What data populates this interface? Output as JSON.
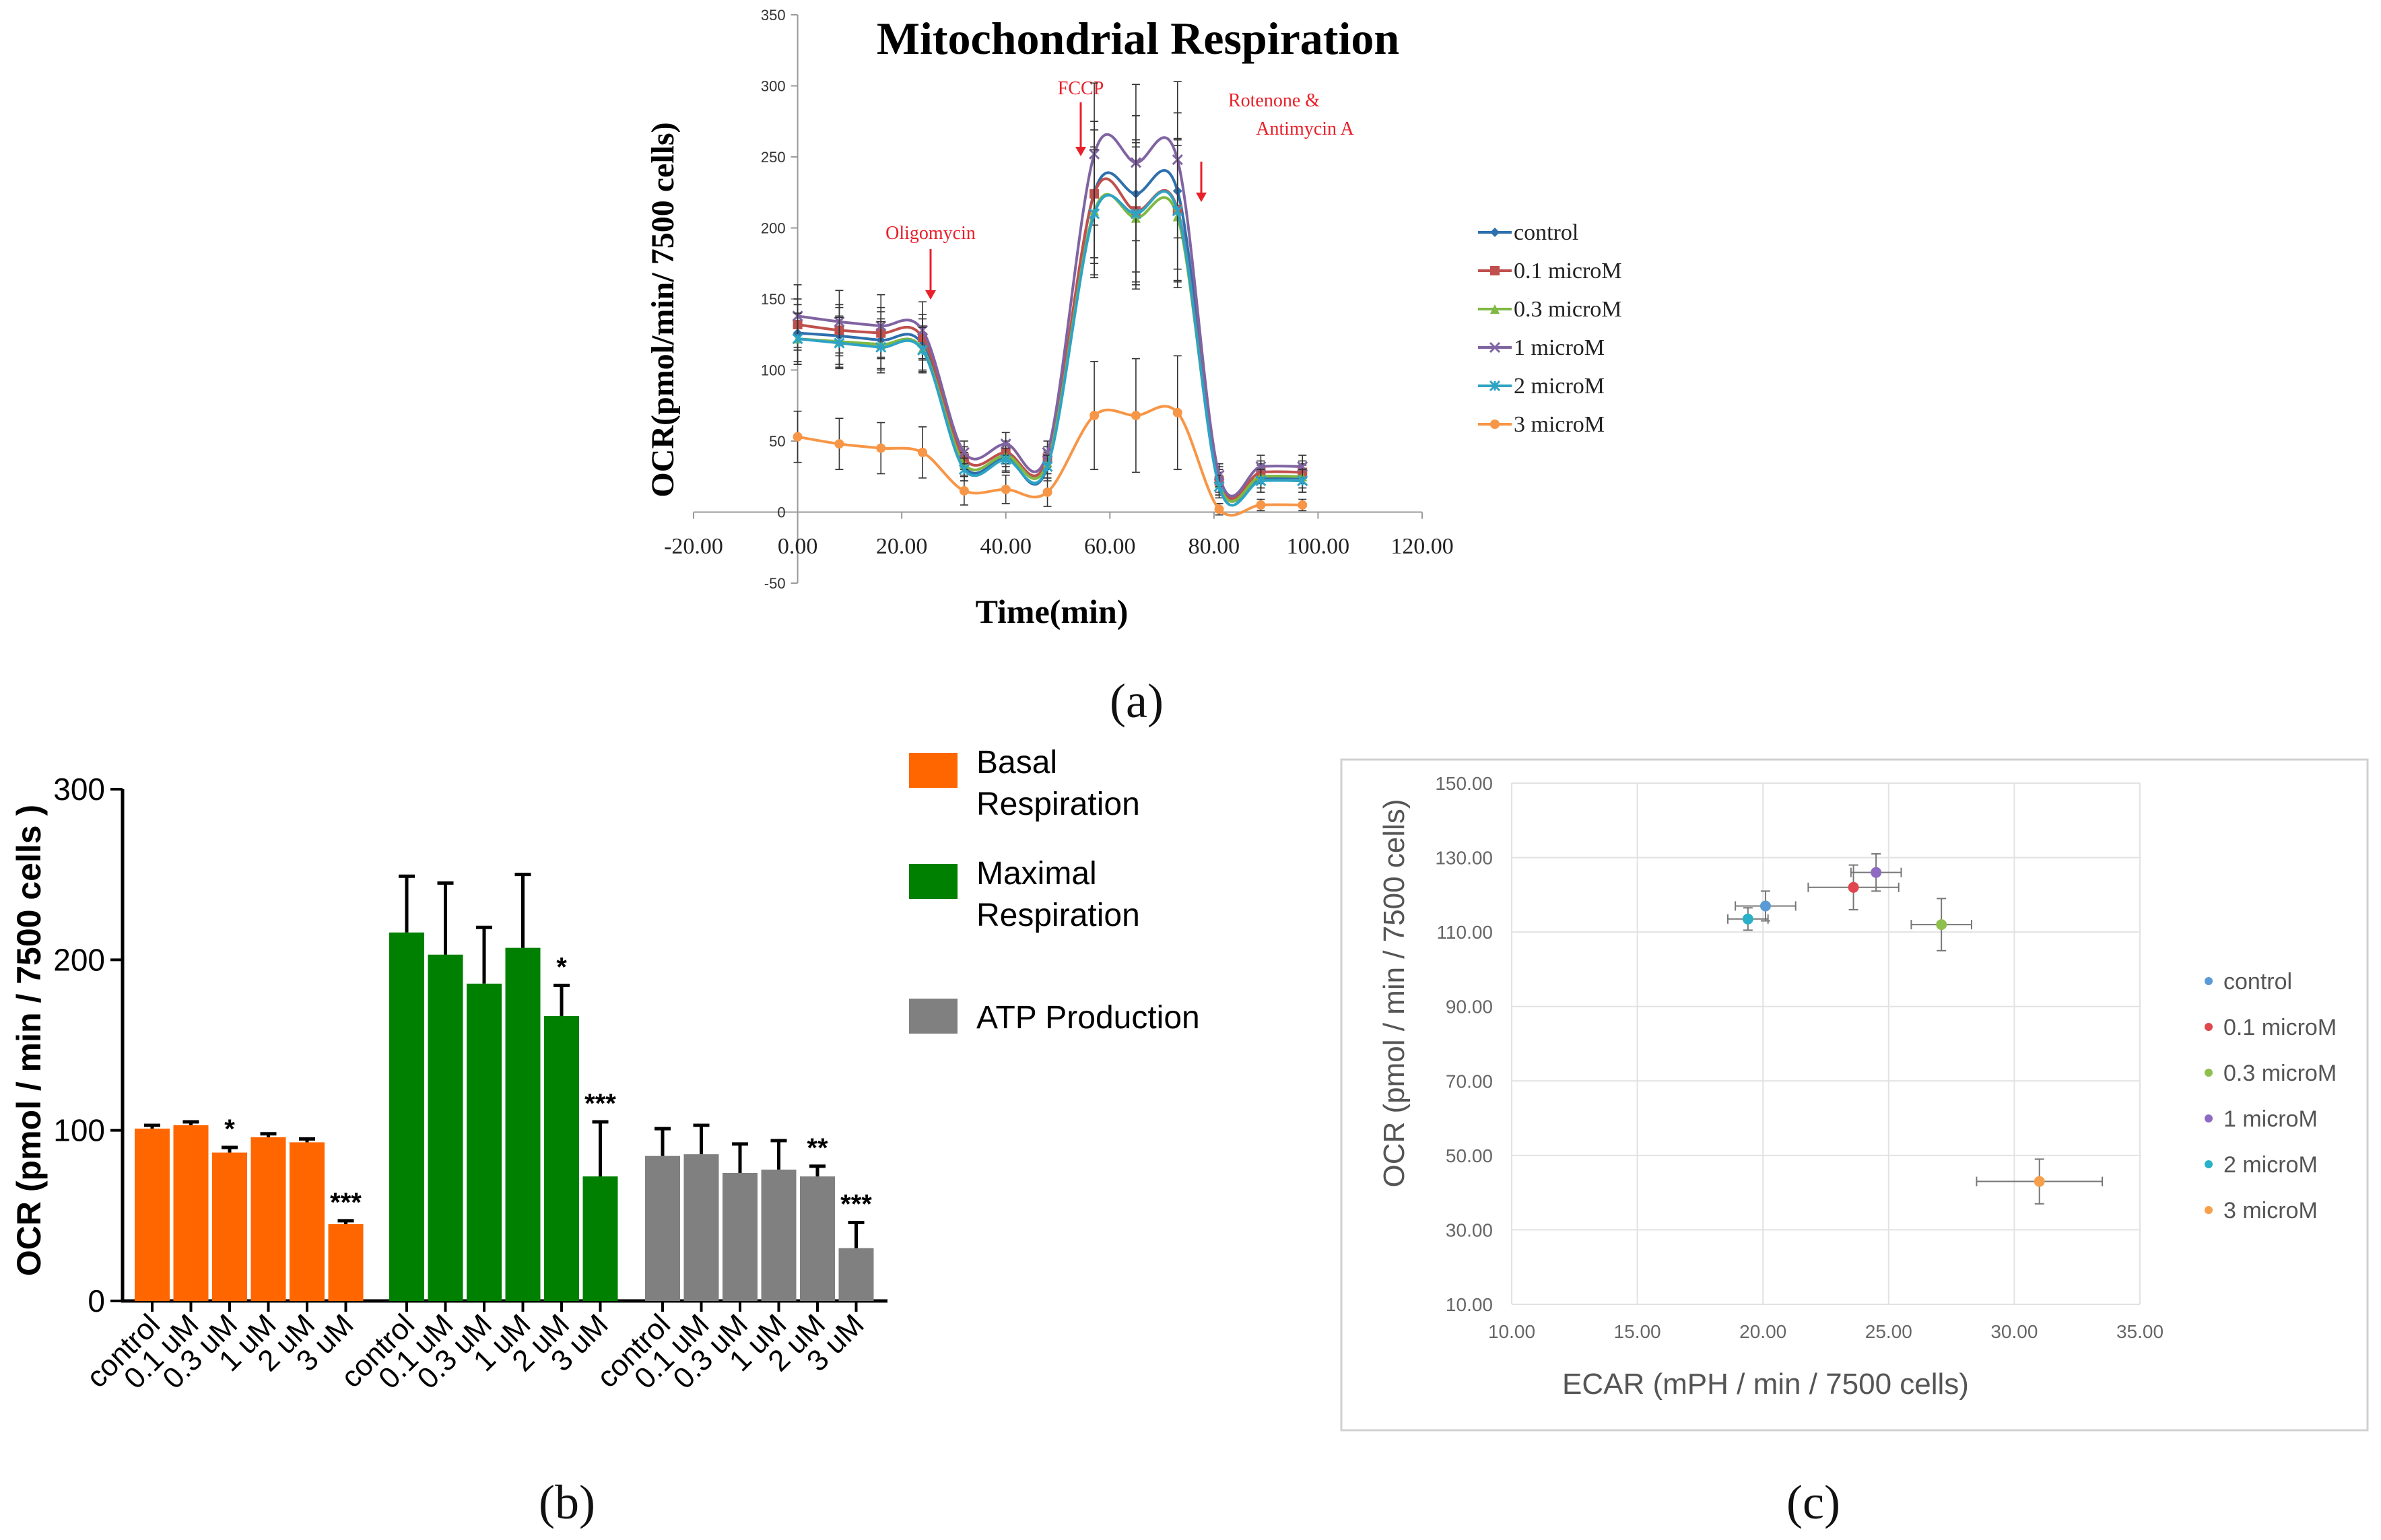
{
  "figure_labels": {
    "a": "(a)",
    "b": "(b)",
    "c": "(c)"
  },
  "chart_data": [
    {
      "id": "a",
      "type": "line",
      "title": "Mitochondrial Respiration",
      "xlabel": "Time(min)",
      "ylabel": "OCR(pmol/min/ 7500 cells)",
      "xlim": [
        -20,
        120
      ],
      "ylim": [
        -50,
        350
      ],
      "xticks": [
        "-20.00",
        "0.00",
        "20.00",
        "40.00",
        "60.00",
        "80.00",
        "100.00",
        "120.00"
      ],
      "yticks": [
        "-50",
        "0",
        "50",
        "100",
        "150",
        "200",
        "250",
        "300",
        "350"
      ],
      "x": [
        0,
        8,
        16,
        24,
        32,
        40,
        48,
        57,
        65,
        73,
        81,
        89,
        97
      ],
      "legend_position": "right",
      "annotations": [
        {
          "text": "Oligomycin",
          "x": 26,
          "arrow_y": 150
        },
        {
          "text": "FCCP",
          "x": 55,
          "arrow_y": 250
        },
        {
          "text": "Rotenone &",
          "x": 78,
          "arrow_y": 220
        },
        {
          "text": "Antimycin  A",
          "x": 78,
          "arrow_y": 220
        }
      ],
      "series": [
        {
          "name": "control",
          "color": "#2e6fad",
          "marker": "diamond",
          "values": [
            126,
            124,
            121,
            118,
            32,
            38,
            32,
            225,
            224,
            226,
            22,
            24,
            24
          ],
          "error": [
            20,
            20,
            20,
            18,
            10,
            10,
            10,
            50,
            55,
            55,
            10,
            10,
            10
          ]
        },
        {
          "name": "0.1 microM",
          "color": "#c0504d",
          "marker": "square",
          "values": [
            132,
            128,
            126,
            123,
            38,
            42,
            38,
            224,
            212,
            213,
            22,
            28,
            28
          ],
          "error": [
            18,
            18,
            18,
            16,
            8,
            8,
            8,
            45,
            50,
            50,
            8,
            8,
            8
          ]
        },
        {
          "name": "0.3 microM",
          "color": "#7fb842",
          "marker": "triangle",
          "values": [
            122,
            120,
            118,
            115,
            34,
            40,
            35,
            212,
            207,
            208,
            20,
            25,
            25
          ],
          "error": [
            18,
            18,
            18,
            16,
            8,
            8,
            8,
            45,
            50,
            50,
            8,
            8,
            8
          ]
        },
        {
          "name": "1 microM",
          "color": "#8064a2",
          "marker": "x",
          "values": [
            138,
            134,
            131,
            128,
            42,
            48,
            42,
            252,
            246,
            248,
            26,
            32,
            32
          ],
          "error": [
            22,
            22,
            22,
            20,
            8,
            8,
            8,
            50,
            55,
            55,
            8,
            8,
            8
          ]
        },
        {
          "name": "2 microM",
          "color": "#2ea3c4",
          "marker": "star",
          "values": [
            122,
            119,
            116,
            114,
            30,
            37,
            32,
            210,
            210,
            212,
            18,
            22,
            22
          ],
          "error": [
            18,
            18,
            18,
            16,
            8,
            8,
            8,
            45,
            50,
            50,
            8,
            8,
            8
          ]
        },
        {
          "name": "3 microM",
          "color": "#f79646",
          "marker": "circle",
          "values": [
            53,
            48,
            45,
            42,
            15,
            16,
            14,
            68,
            68,
            70,
            2,
            5,
            5
          ],
          "error": [
            18,
            18,
            18,
            18,
            10,
            10,
            10,
            38,
            40,
            40,
            4,
            4,
            4
          ]
        }
      ]
    },
    {
      "id": "b",
      "type": "bar",
      "ylabel": "OCR (pmol / min / 7500 cells )",
      "ylim": [
        0,
        300
      ],
      "yticks": [
        "0",
        "100",
        "200",
        "300"
      ],
      "categories": [
        "control",
        "0.1 uM",
        "0.3 uM",
        "1 uM",
        "2 uM",
        "3 uM"
      ],
      "legend_position": "right",
      "series": [
        {
          "name": "Basal Respiration",
          "legend_lines": [
            "Basal",
            "Respiration"
          ],
          "color": "#ff6600",
          "values": [
            101,
            103,
            87,
            96,
            93,
            45
          ],
          "error": [
            2,
            2,
            3,
            2,
            2,
            2
          ],
          "significance": [
            "",
            "",
            "*",
            "",
            "",
            "***"
          ]
        },
        {
          "name": "Maximal Respiration",
          "legend_lines": [
            "Maximal",
            "Respiration"
          ],
          "color": "#008000",
          "values": [
            216,
            203,
            186,
            207,
            167,
            73
          ],
          "error": [
            33,
            42,
            33,
            43,
            18,
            32
          ],
          "significance": [
            "",
            "",
            "",
            "",
            "*",
            "***"
          ]
        },
        {
          "name": "ATP Production",
          "legend_lines": [
            "ATP Production"
          ],
          "color": "#808080",
          "values": [
            85,
            86,
            75,
            77,
            73,
            31
          ],
          "error": [
            16,
            17,
            17,
            17,
            6,
            15
          ],
          "significance": [
            "",
            "",
            "",
            "",
            "**",
            "***"
          ]
        }
      ]
    },
    {
      "id": "c",
      "type": "scatter",
      "xlabel": "ECAR (mPH / min / 7500 cells)",
      "ylabel": "OCR (pmol / min / 7500 cells)",
      "xlim": [
        10,
        35
      ],
      "ylim": [
        10,
        150
      ],
      "xticks": [
        "10.00",
        "15.00",
        "20.00",
        "25.00",
        "30.00",
        "35.00"
      ],
      "yticks": [
        "10.00",
        "30.00",
        "50.00",
        "70.00",
        "90.00",
        "110.00",
        "130.00",
        "150.00"
      ],
      "grid": true,
      "legend_position": "right",
      "series": [
        {
          "name": "control",
          "color": "#5b9bd5",
          "x": 20.1,
          "y": 117,
          "xerr": 1.2,
          "yerr": 4
        },
        {
          "name": "0.1 microM",
          "color": "#e0464d",
          "x": 23.6,
          "y": 122,
          "xerr": 1.8,
          "yerr": 6
        },
        {
          "name": "0.3 microM",
          "color": "#8fc04f",
          "x": 27.1,
          "y": 112,
          "xerr": 1.2,
          "yerr": 7
        },
        {
          "name": "1 microM",
          "color": "#8e6ac2",
          "x": 24.5,
          "y": 126,
          "xerr": 1.0,
          "yerr": 5
        },
        {
          "name": "2 microM",
          "color": "#2ab0c8",
          "x": 19.4,
          "y": 113.5,
          "xerr": 0.8,
          "yerr": 3
        },
        {
          "name": "3 microM",
          "color": "#f7a04b",
          "x": 31.0,
          "y": 43,
          "xerr": 2.5,
          "yerr": 6
        }
      ]
    }
  ]
}
